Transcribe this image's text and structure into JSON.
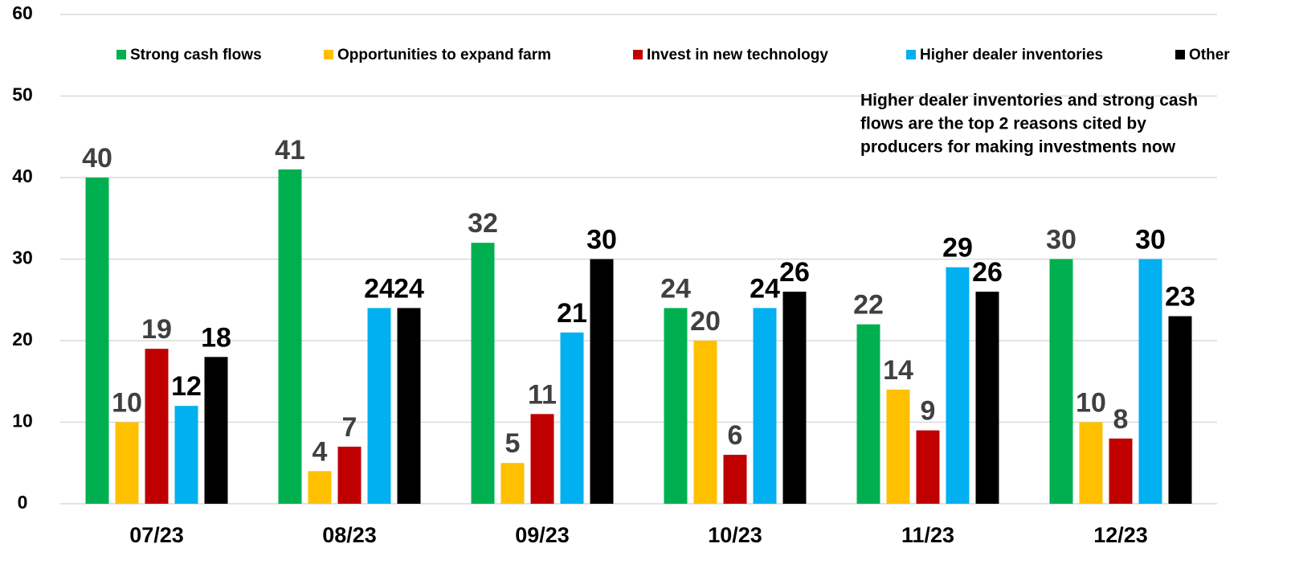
{
  "chart_data": {
    "type": "bar",
    "categories": [
      "07/23",
      "08/23",
      "09/23",
      "10/23",
      "11/23",
      "12/23"
    ],
    "series": [
      {
        "name": "Strong cash flows",
        "color": "#00b050",
        "label_color": "#404040",
        "values": [
          40,
          41,
          32,
          24,
          22,
          30
        ]
      },
      {
        "name": "Opportunities to expand farm",
        "color": "#ffc000",
        "label_color": "#404040",
        "values": [
          10,
          4,
          5,
          20,
          14,
          10
        ]
      },
      {
        "name": "Invest in new technology",
        "color": "#c00000",
        "label_color": "#404040",
        "values": [
          19,
          7,
          11,
          6,
          9,
          8
        ]
      },
      {
        "name": "Higher dealer inventories",
        "color": "#00b0f0",
        "label_color": "#000000",
        "values": [
          12,
          24,
          21,
          24,
          29,
          30
        ]
      },
      {
        "name": "Other",
        "color": "#000000",
        "label_color": "#000000",
        "values": [
          18,
          24,
          30,
          26,
          26,
          23
        ]
      }
    ],
    "ylim": [
      0,
      60
    ],
    "yticks": [
      0,
      10,
      20,
      30,
      40,
      50,
      60
    ],
    "grid": true,
    "legend": "top",
    "annotation": [
      "Higher dealer inventories and strong cash",
      "flows are the top 2 reasons cited by",
      "producers for making investments now"
    ]
  }
}
